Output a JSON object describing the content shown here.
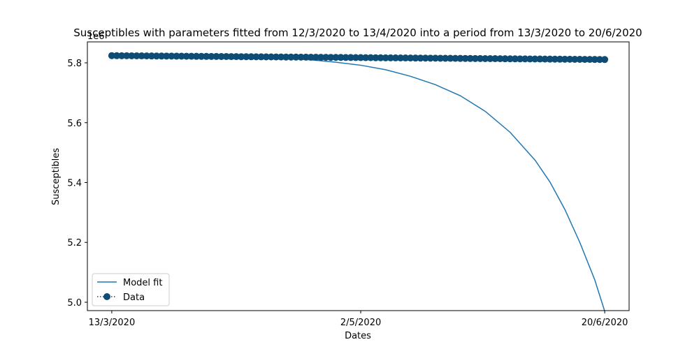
{
  "chart_data": {
    "type": "line",
    "title": "Susceptibles with parameters fitted from 12/3/2020 to 13/4/2020 into a period from 13/3/2020 to 20/6/2020",
    "xlabel": "Dates",
    "ylabel": "Susceptibles",
    "y_offset_label": "1e6",
    "x_start_day": 0,
    "x_end_day": 99,
    "xlim": [
      -4.9,
      103.9
    ],
    "ylim": [
      4.972,
      5.87
    ],
    "x_ticks": [
      {
        "day": 0,
        "label": "13/3/2020"
      },
      {
        "day": 50,
        "label": "2/5/2020"
      },
      {
        "day": 99,
        "label": "20/6/2020"
      }
    ],
    "y_ticks": [
      {
        "value": 5.0,
        "label": "5.0"
      },
      {
        "value": 5.2,
        "label": "5.2"
      },
      {
        "value": 5.4,
        "label": "5.4"
      },
      {
        "value": 5.6,
        "label": "5.6"
      },
      {
        "value": 5.8,
        "label": "5.8"
      }
    ],
    "series": [
      {
        "name": "Model fit",
        "style": "line",
        "color": "#1f77b4",
        "points": [
          [
            0,
            5.824
          ],
          [
            10,
            5.823
          ],
          [
            20,
            5.821
          ],
          [
            30,
            5.818
          ],
          [
            35,
            5.815
          ],
          [
            40,
            5.81
          ],
          [
            45,
            5.802
          ],
          [
            50,
            5.792
          ],
          [
            55,
            5.777
          ],
          [
            60,
            5.755
          ],
          [
            65,
            5.727
          ],
          [
            70,
            5.69
          ],
          [
            75,
            5.638
          ],
          [
            80,
            5.568
          ],
          [
            85,
            5.475
          ],
          [
            88,
            5.402
          ],
          [
            91,
            5.31
          ],
          [
            94,
            5.2
          ],
          [
            97,
            5.075
          ],
          [
            99,
            4.97
          ]
        ]
      },
      {
        "name": "Data",
        "style": "dotted-markers",
        "color": "#0f4c75",
        "start": 5.824,
        "end": 5.811
      }
    ],
    "legend_position": "lower-left"
  }
}
